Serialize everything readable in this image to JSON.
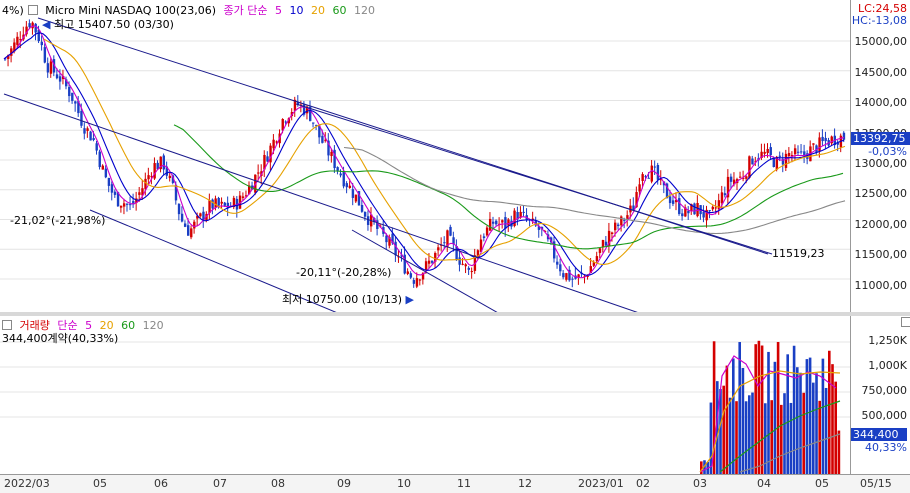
{
  "price_panel": {
    "legend": {
      "name": "Micro Mini NASDAQ 100(23,06)",
      "ma_type": "종가 단순",
      "periods": [
        {
          "value": "5",
          "color": "#cc00cc"
        },
        {
          "value": "10",
          "color": "#0000cc"
        },
        {
          "value": "20",
          "color": "#e6a100"
        },
        {
          "value": "60",
          "color": "#1a9a1a"
        },
        {
          "value": "120",
          "color": "#888888"
        }
      ],
      "clipped_prefix": "4%)"
    },
    "high_label": "최고 15407.50 (03/30)",
    "low_label": "최저 10750.00 (10/13)",
    "angle_1": "-21,02°(-21,98%)",
    "angle_2": "-20,11°(-20,28%)",
    "channel_value": "11519,23",
    "lc_label": "LC:24,58",
    "hc_label": "HC:-13,08",
    "axis_ticks": [
      "15000,00",
      "14500,00",
      "14000,00",
      "13500,00",
      "13000,00",
      "12500,00",
      "12000,00",
      "11500,00",
      "11000,00"
    ],
    "current_price": "13392,75",
    "current_change": "-0,03%"
  },
  "volume_panel": {
    "legend": {
      "name": "거래량",
      "ma_type": "단순",
      "periods": [
        {
          "value": "5",
          "color": "#cc00cc"
        },
        {
          "value": "20",
          "color": "#e6a100"
        },
        {
          "value": "60",
          "color": "#1a9a1a"
        },
        {
          "value": "120",
          "color": "#888888"
        }
      ]
    },
    "current_text": "344,400계약(40,33%)",
    "axis_ticks": [
      "1,250K",
      "1,000K",
      "750,000",
      "500,000"
    ],
    "current_value": "344,400",
    "current_pct": "40,33%"
  },
  "date_axis": {
    "labels": [
      "2022/03",
      "05",
      "06",
      "07",
      "08",
      "09",
      "10",
      "11",
      "12",
      "2023/01",
      "02",
      "03",
      "04",
      "05",
      "05/15"
    ]
  },
  "colors": {
    "up": "#d40000",
    "down": "#1a3fc4",
    "channel": "#1a1a8c"
  }
}
